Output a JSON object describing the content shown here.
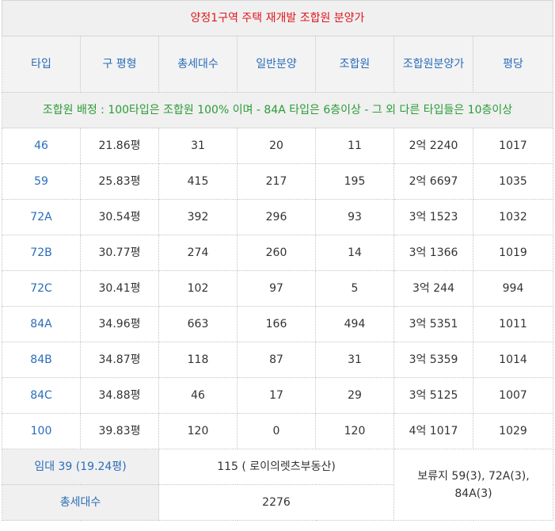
{
  "title": "양정1구역 주택 재개발 조합원 분양가",
  "headers": [
    "타입",
    "구 평형",
    "총세대수",
    "일반분양",
    "조합원",
    "조합원분양가",
    "평당"
  ],
  "note": "조합원 배정 : 100타입은 조합원 100% 이며 - 84A 타입은 6층이상 - 그 외 다른 타입들은 10층이상",
  "rows": [
    [
      "46",
      "21.86평",
      "31",
      "20",
      "11",
      "2억 2240",
      "1017"
    ],
    [
      "59",
      "25.83평",
      "415",
      "217",
      "195",
      "2억 6697",
      "1035"
    ],
    [
      "72A",
      "30.54평",
      "392",
      "296",
      "93",
      "3억 1523",
      "1032"
    ],
    [
      "72B",
      "30.77평",
      "274",
      "260",
      "14",
      "3억 1366",
      "1019"
    ],
    [
      "72C",
      "30.41평",
      "102",
      "97",
      "5",
      "3억 244",
      "994"
    ],
    [
      "84A",
      "34.96평",
      "663",
      "166",
      "494",
      "3억 5351",
      "1011"
    ],
    [
      "84B",
      "34.87평",
      "118",
      "87",
      "31",
      "3억 5359",
      "1014"
    ],
    [
      "84C",
      "34.88평",
      "46",
      "17",
      "29",
      "3억 5125",
      "1007"
    ],
    [
      "100",
      "39.83평",
      "120",
      "0",
      "120",
      "4억 1017",
      "1029"
    ]
  ],
  "footer": {
    "rental_label": "임대 39 (19.24평)",
    "rental_value": "115 ( 로이의렛츠부동산)",
    "total_label": "총세대수",
    "total_value": "2276",
    "reserve_note": "보류지 59(3), 72A(3), 84A(3)"
  }
}
